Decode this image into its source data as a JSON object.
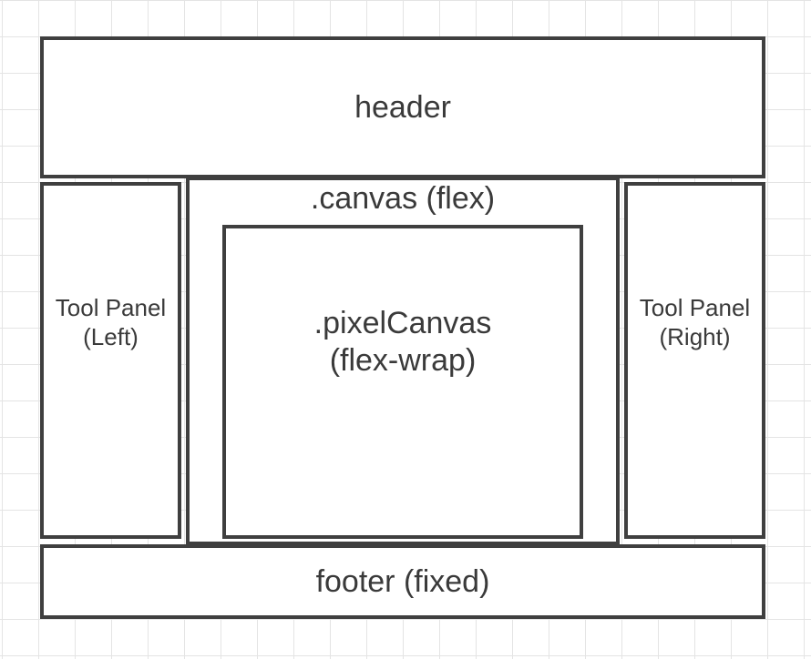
{
  "diagram": {
    "header": {
      "label": "header"
    },
    "left_panel": {
      "label": "Tool Panel\n(Left)"
    },
    "right_panel": {
      "label": "Tool Panel\n(Right)"
    },
    "canvas": {
      "label": ".canvas (flex)"
    },
    "pixel_canvas": {
      "label": ".pixelCanvas\n(flex-wrap)"
    },
    "footer": {
      "label": "footer (fixed)"
    }
  }
}
